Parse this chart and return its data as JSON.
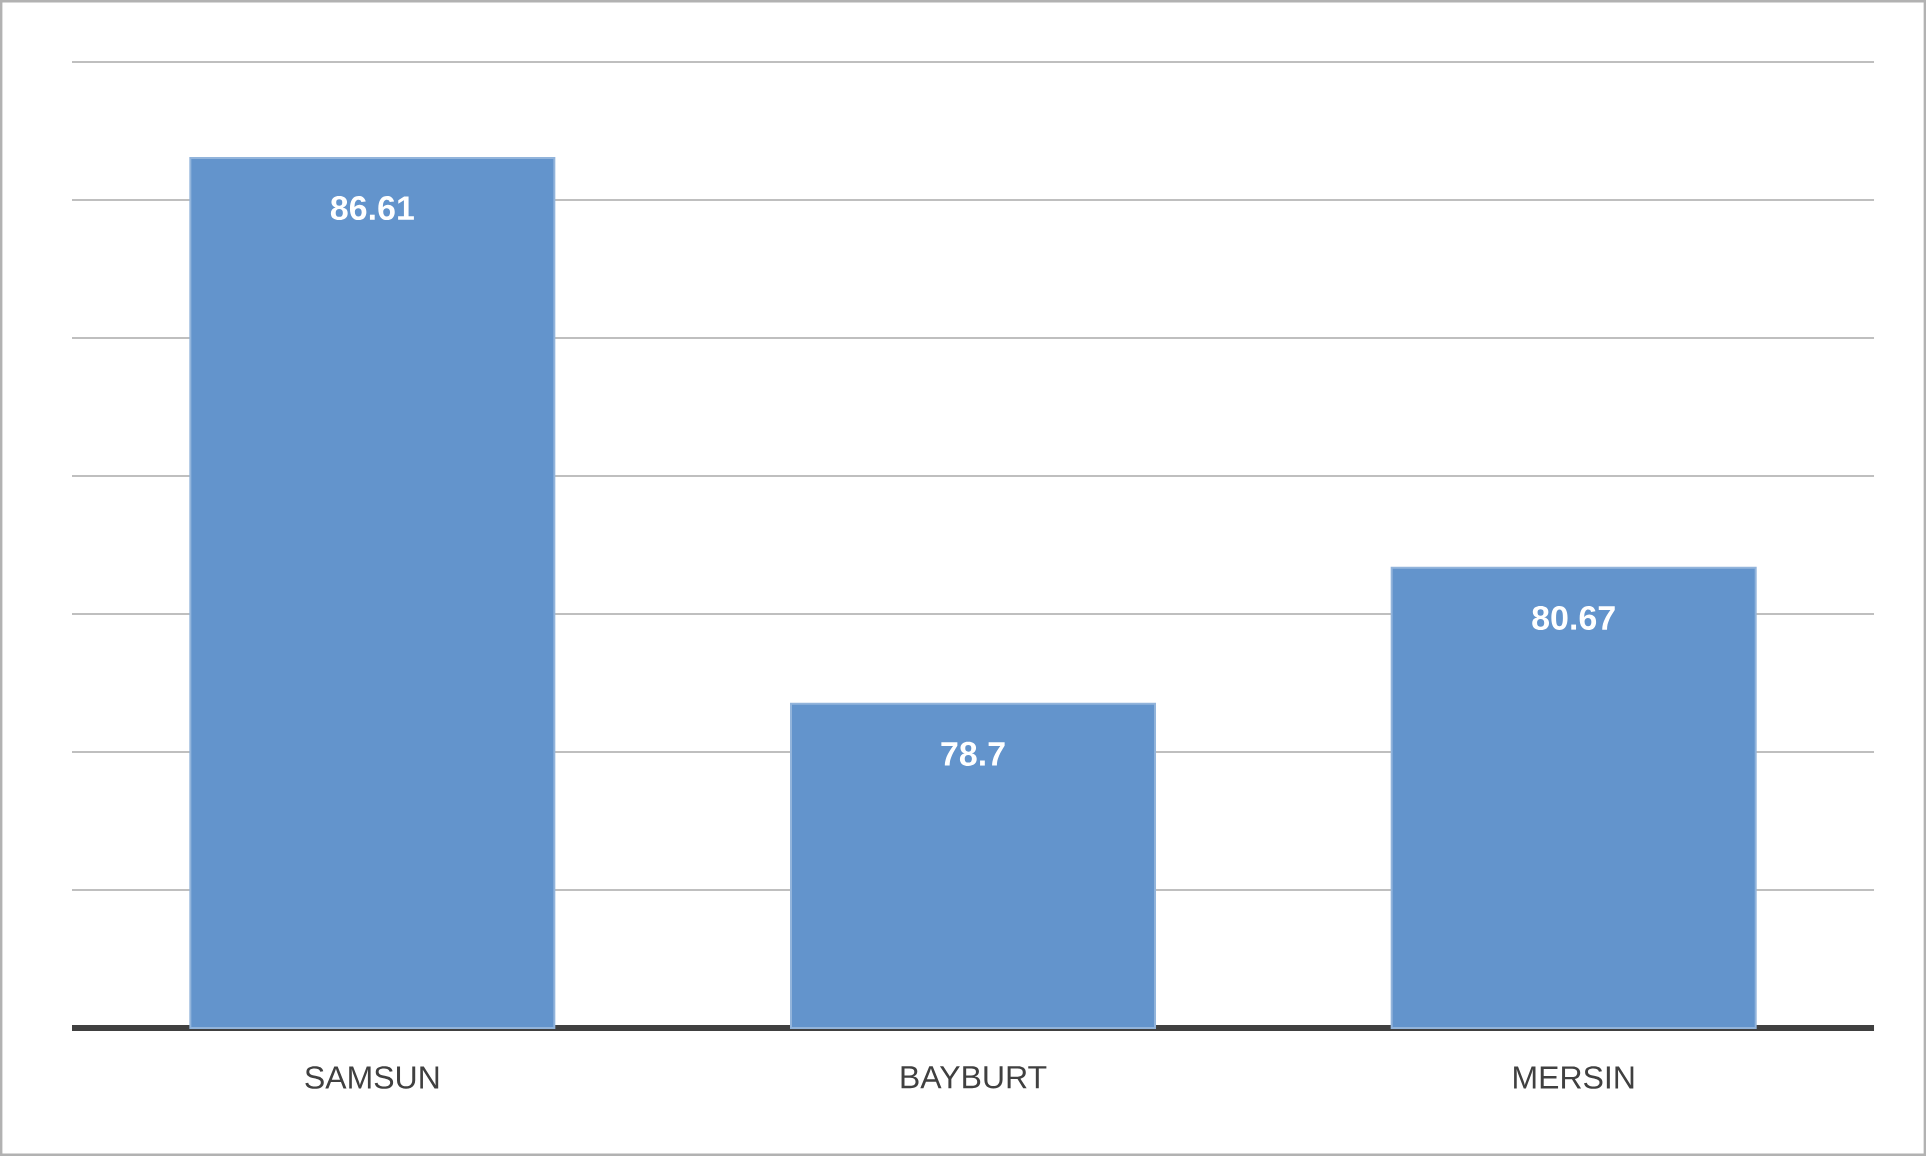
{
  "chart_data": {
    "type": "bar",
    "categories": [
      "SAMSUN",
      "BAYBURT",
      "MERSIN"
    ],
    "values": [
      86.61,
      78.7,
      80.67
    ],
    "color": "#6394cc",
    "ylim": [
      74,
      88
    ],
    "yticks": [
      {
        "value": 76,
        "label": null
      },
      {
        "value": 78,
        "label": null
      },
      {
        "value": 80,
        "label": null
      },
      {
        "value": 82,
        "label": null
      },
      {
        "value": 84,
        "label": null
      },
      {
        "value": 86,
        "label": null
      },
      {
        "value": 88,
        "label": null
      }
    ],
    "grid": "y",
    "tick_labels": "x",
    "data_labels": true
  }
}
